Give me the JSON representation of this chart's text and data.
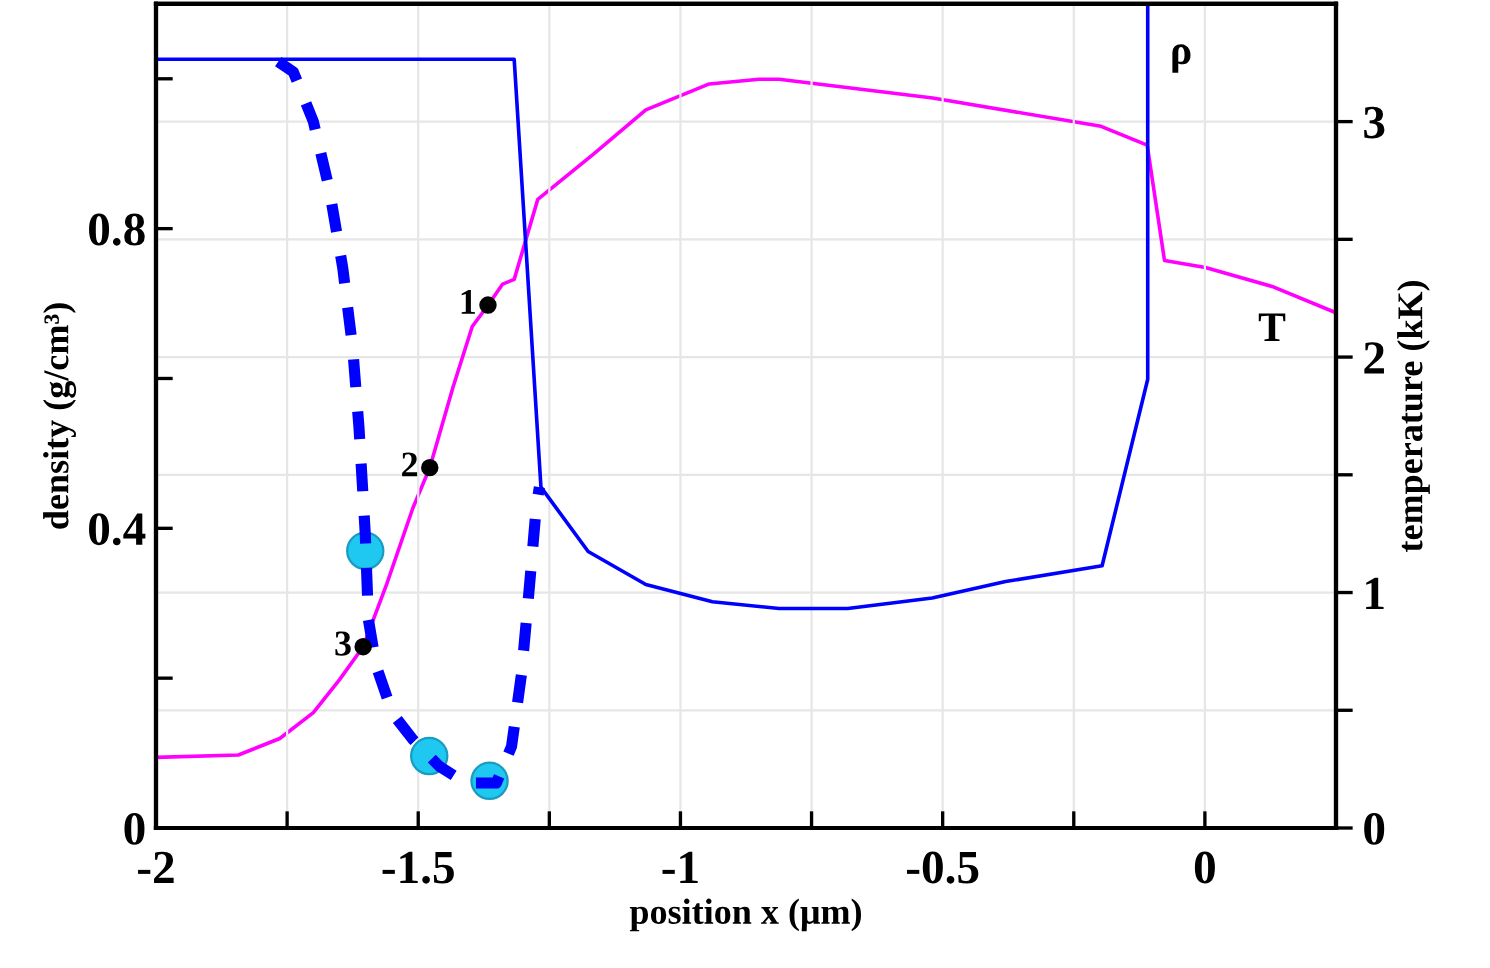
{
  "chart_data": {
    "type": "line",
    "xlabel": "position x (μm)",
    "ylabel": "density (g/cm³)",
    "y2label": "temperature (kK)",
    "xlim": [
      -2,
      0.25
    ],
    "xticks": [
      -2,
      {
        "value": -1.75,
        "label": null
      },
      -1.5,
      {
        "value": -1.25,
        "label": null
      },
      -1,
      {
        "value": -0.75,
        "label": null
      },
      -0.5,
      {
        "value": -0.25,
        "label": null
      },
      0
    ],
    "ylim": [
      0,
      1.1
    ],
    "yticks": [
      0,
      {
        "value": 0.2,
        "label": null
      },
      0.4,
      {
        "value": 0.6,
        "label": null
      },
      0.8,
      {
        "value": 1.0,
        "label": null
      }
    ],
    "y2lim": [
      0,
      3.5
    ],
    "y2ticks": [
      0,
      {
        "value": 0.5,
        "label": null
      },
      1,
      {
        "value": 1.5,
        "label": null
      },
      2,
      {
        "value": 2.5,
        "label": null
      },
      3
    ],
    "grid": true,
    "series": [
      {
        "name": "ρ",
        "color": "#0000ff",
        "line_style": "solid",
        "x": [
          -2,
          -1.317,
          -1.266,
          -1.176,
          -1.066,
          -0.939,
          -0.812,
          -0.681,
          -0.52,
          -0.38,
          -0.196,
          -0.109,
          -0.109
        ],
        "values": [
          1.026,
          1.026,
          0.455,
          0.369,
          0.325,
          0.302,
          0.293,
          0.293,
          0.307,
          0.329,
          0.35,
          0.599,
          1.1
        ]
      },
      {
        "name": "T",
        "color": "#ff00ff",
        "line_style": "solid",
        "axis": "y2",
        "x": [
          -2,
          -1.843,
          -1.764,
          -1.7,
          -1.65,
          -1.605,
          -1.561,
          -1.51,
          -1.478,
          -1.434,
          -1.397,
          -1.367,
          -1.339,
          -1.317,
          -1.272,
          -1.167,
          -1.066,
          -0.945,
          -0.85,
          -0.812,
          -0.519,
          -0.198,
          -0.11,
          -0.077,
          0.001,
          0.128,
          0.248
        ],
        "values": [
          0.3,
          0.31,
          0.38,
          0.49,
          0.63,
          0.77,
          1.03,
          1.36,
          1.53,
          1.87,
          2.13,
          2.22,
          2.31,
          2.33,
          2.67,
          2.86,
          3.05,
          3.16,
          3.18,
          3.18,
          3.1,
          2.98,
          2.9,
          2.41,
          2.38,
          2.3,
          2.19
        ]
      },
      {
        "color": "#0000ff",
        "line_style": "dashed",
        "x": [
          -1.767,
          -1.738,
          -1.7,
          -1.67,
          -1.644,
          -1.625,
          -1.613,
          -1.601,
          -1.595,
          -1.58,
          -1.549,
          -1.51,
          -1.459,
          -1.409,
          -1.351,
          -1.322,
          -1.303,
          -1.288,
          -1.275,
          -1.269
        ],
        "values": [
          1.023,
          1.009,
          0.943,
          0.854,
          0.748,
          0.641,
          0.535,
          0.393,
          0.278,
          0.216,
          0.153,
          0.118,
          0.082,
          0.06,
          0.06,
          0.109,
          0.206,
          0.322,
          0.428,
          0.455
        ]
      },
      {
        "type": "scatter",
        "color": "#1ec8f0",
        "marker": "circle",
        "x": [
          -1.601,
          -1.479,
          -1.364
        ],
        "values": [
          0.37,
          0.096,
          0.063
        ]
      },
      {
        "type": "scatter",
        "color": "#000000",
        "marker": "circle",
        "x": [
          -1.367,
          -1.478,
          -1.605
        ],
        "values": [
          0.698,
          0.481,
          0.242
        ]
      }
    ],
    "annotations": [
      {
        "text": "1",
        "x": -1.367,
        "y": 0.698
      },
      {
        "text": "2",
        "x": -1.478,
        "y": 0.481
      },
      {
        "text": "3",
        "x": -1.605,
        "y": 0.242
      }
    ]
  }
}
